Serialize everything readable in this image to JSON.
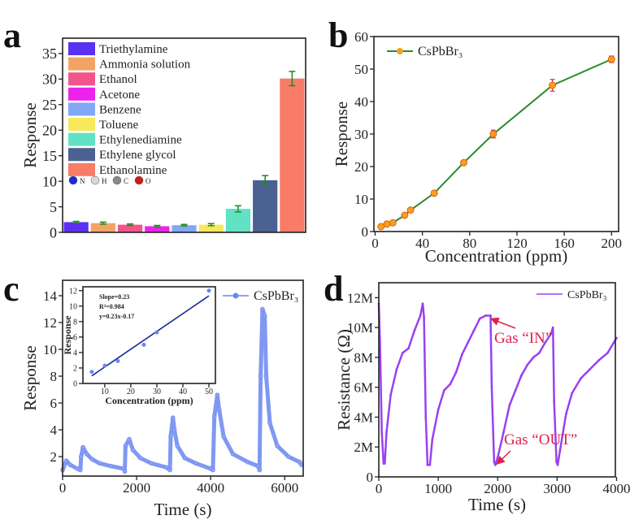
{
  "panel_labels": [
    "a",
    "b",
    "c",
    "d"
  ],
  "chart_data": [
    {
      "panel": "a",
      "type": "bar",
      "ylabel": "Response",
      "ylim": [
        0,
        38
      ],
      "yticks": [
        0,
        5,
        10,
        15,
        20,
        25,
        30,
        35
      ],
      "categories": [
        "Triethylamine",
        "Ammonia solution",
        "Ethanol",
        "Acetone",
        "Benzene",
        "Toluene",
        "Ethylenediamine",
        "Ethylene glycol",
        "Ethanolamine"
      ],
      "values": [
        2.0,
        1.8,
        1.5,
        1.2,
        1.4,
        1.5,
        4.6,
        10.2,
        30.1
      ],
      "errors": [
        0.15,
        0.2,
        0.15,
        0.15,
        0.15,
        0.2,
        0.6,
        0.9,
        1.4
      ],
      "colors": [
        "#5b30f0",
        "#f2a466",
        "#f2558c",
        "#ee22ee",
        "#82a8f5",
        "#f7e85c",
        "#62e2c4",
        "#4a6192",
        "#f87c66"
      ],
      "error_color": "#1f8a1f",
      "legend": "top-left",
      "atom_legend": [
        "N",
        "H",
        "C",
        "O"
      ],
      "atom_colors": [
        "#1a2ad8",
        "#d8d8d8",
        "#8a8a8a",
        "#d81818"
      ]
    },
    {
      "panel": "b",
      "type": "line",
      "xlabel": "Concentration (ppm)",
      "ylabel": "Response",
      "xlim": [
        -1,
        206
      ],
      "ylim": [
        0,
        60
      ],
      "xticks": [
        0,
        40,
        80,
        120,
        160,
        200
      ],
      "yticks": [
        0,
        10,
        20,
        30,
        40,
        50,
        60
      ],
      "series": [
        {
          "name": "CsPbBr₃",
          "x": [
            5,
            10,
            15,
            25,
            30,
            50,
            75,
            100,
            150,
            200
          ],
          "y": [
            1.5,
            2.3,
            2.7,
            5.0,
            6.6,
            11.8,
            21.2,
            30.0,
            45.0,
            53.0
          ],
          "err": [
            0.3,
            0.3,
            0.3,
            0.4,
            0.4,
            0.5,
            0.6,
            1.2,
            1.8,
            1.0
          ],
          "line_color": "#2a8a2a",
          "marker_color": "#f5a020",
          "error_color": "#d0204a"
        }
      ],
      "legend": "top-left"
    },
    {
      "panel": "c",
      "type": "line",
      "xlabel": "Time (s)",
      "ylabel": "Response",
      "xlim": [
        0,
        6500
      ],
      "ylim": [
        0.55,
        15.15
      ],
      "xticks": [
        0,
        2000,
        4000,
        6000
      ],
      "yticks": [
        2,
        4,
        6,
        8,
        10,
        12,
        14
      ],
      "series": [
        {
          "name": "CsPbBr₃",
          "color": "#6a86f0",
          "points": [
            [
              0,
              1.0
            ],
            [
              40,
              1.3
            ],
            [
              100,
              1.7
            ],
            [
              200,
              1.4
            ],
            [
              400,
              1.1
            ],
            [
              480,
              1.0
            ],
            [
              500,
              2.0
            ],
            [
              550,
              2.7
            ],
            [
              650,
              2.2
            ],
            [
              800,
              1.8
            ],
            [
              1000,
              1.5
            ],
            [
              1300,
              1.3
            ],
            [
              1650,
              1.1
            ],
            [
              1680,
              0.9
            ],
            [
              1700,
              2.8
            ],
            [
              1800,
              3.3
            ],
            [
              1900,
              2.5
            ],
            [
              2100,
              1.9
            ],
            [
              2400,
              1.5
            ],
            [
              2800,
              1.2
            ],
            [
              2900,
              1.0
            ],
            [
              2920,
              3.5
            ],
            [
              2980,
              4.9
            ],
            [
              3020,
              4.0
            ],
            [
              3100,
              2.8
            ],
            [
              3300,
              1.9
            ],
            [
              3600,
              1.5
            ],
            [
              4000,
              1.1
            ],
            [
              4060,
              1.0
            ],
            [
              4100,
              5.0
            ],
            [
              4180,
              6.6
            ],
            [
              4230,
              5.5
            ],
            [
              4350,
              3.5
            ],
            [
              4600,
              2.2
            ],
            [
              5000,
              1.6
            ],
            [
              5280,
              1.3
            ],
            [
              5320,
              1.0
            ],
            [
              5350,
              8.0
            ],
            [
              5400,
              13.0
            ],
            [
              5460,
              12.5
            ],
            [
              5500,
              8.0
            ],
            [
              5600,
              4.5
            ],
            [
              5800,
              2.8
            ],
            [
              6100,
              2.0
            ],
            [
              6400,
              1.6
            ],
            [
              6450,
              1.4
            ]
          ]
        }
      ],
      "legend": "top-right",
      "inset": {
        "type": "scatter",
        "xlabel": "Concentration (ppm)",
        "ylabel": "Response",
        "xlim": [
          1.6,
          52.5
        ],
        "ylim": [
          0,
          12.5
        ],
        "xticks": [
          10,
          20,
          30,
          40,
          50
        ],
        "yticks": [
          0,
          2,
          4,
          6,
          8,
          10,
          12
        ],
        "x": [
          5,
          10,
          15,
          25,
          30,
          50
        ],
        "y": [
          1.5,
          2.3,
          2.9,
          5.0,
          6.6,
          12.0
        ],
        "fit": {
          "slope": 0.23,
          "intercept": -0.17,
          "x_range": [
            5,
            50
          ]
        },
        "annotations": [
          "Slope=0.23",
          "R²=0.984",
          "y=0.23x-0.17"
        ],
        "point_color": "#6a86f0",
        "fit_color": "#1a2a9a"
      }
    },
    {
      "panel": "d",
      "type": "line",
      "xlabel": "Time (s)",
      "ylabel": "Resistance (Ω)",
      "xlim": [
        0,
        3980
      ],
      "ylim": [
        0,
        13
      ],
      "xticks": [
        0,
        1000,
        2000,
        3000,
        4000
      ],
      "yticks": [
        0,
        2,
        4,
        6,
        8,
        10,
        12
      ],
      "ytick_labels": [
        "0",
        "2M",
        "4M",
        "6M",
        "8M",
        "10M",
        "12M"
      ],
      "y_unit": "MΩ",
      "series": [
        {
          "name": "CsPbBr₃",
          "color": "#9a40f0",
          "points": [
            [
              0,
              11.6
            ],
            [
              20,
              9
            ],
            [
              50,
              3
            ],
            [
              80,
              0.9
            ],
            [
              100,
              0.9
            ],
            [
              130,
              3
            ],
            [
              200,
              5.5
            ],
            [
              300,
              7.2
            ],
            [
              400,
              8.3
            ],
            [
              500,
              8.6
            ],
            [
              600,
              9.8
            ],
            [
              700,
              10.8
            ],
            [
              740,
              11.6
            ],
            [
              760,
              10.7
            ],
            [
              790,
              4
            ],
            [
              820,
              0.8
            ],
            [
              860,
              0.8
            ],
            [
              900,
              2.5
            ],
            [
              1000,
              4.5
            ],
            [
              1100,
              5.8
            ],
            [
              1200,
              6.2
            ],
            [
              1300,
              7
            ],
            [
              1400,
              8.2
            ],
            [
              1500,
              9
            ],
            [
              1600,
              9.8
            ],
            [
              1700,
              10.6
            ],
            [
              1800,
              10.8
            ],
            [
              1880,
              10.8
            ],
            [
              1900,
              6
            ],
            [
              1940,
              1.0
            ],
            [
              1960,
              0.8
            ],
            [
              2000,
              1.3
            ],
            [
              2100,
              3
            ],
            [
              2200,
              4.8
            ],
            [
              2300,
              5.8
            ],
            [
              2400,
              6.8
            ],
            [
              2500,
              7.5
            ],
            [
              2600,
              8
            ],
            [
              2700,
              8.3
            ],
            [
              2800,
              9
            ],
            [
              2900,
              9.6
            ],
            [
              2930,
              10
            ],
            [
              2950,
              5
            ],
            [
              2990,
              1.0
            ],
            [
              3010,
              0.8
            ],
            [
              3050,
              1.8
            ],
            [
              3150,
              4.2
            ],
            [
              3250,
              5.6
            ],
            [
              3400,
              6.6
            ],
            [
              3550,
              7.2
            ],
            [
              3700,
              7.8
            ],
            [
              3850,
              8.3
            ],
            [
              4000,
              9.3
            ]
          ]
        }
      ],
      "legend": "top-right",
      "annotations": [
        {
          "text": "Gas “IN”",
          "points_to": [
            1860,
            10.7
          ]
        },
        {
          "text": "Gas “OUT”",
          "points_to": [
            1960,
            0.8
          ]
        }
      ],
      "annotation_color": "#e0204a"
    }
  ]
}
